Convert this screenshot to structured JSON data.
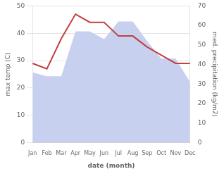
{
  "chart_data": {
    "type": "line",
    "xlabel": "date (month)",
    "ylabel": "max temp (C)",
    "y2label": "med. precipitation (kg/m2)",
    "categories": [
      "Jan",
      "Feb",
      "Mar",
      "Apr",
      "May",
      "Jun",
      "Jul",
      "Aug",
      "Sep",
      "Oct",
      "Nov",
      "Dec"
    ],
    "series": [
      {
        "type": "area",
        "axis": "y2",
        "color": "#c8d0f0",
        "values": [
          36,
          34,
          34,
          57,
          57,
          53,
          62,
          62,
          52,
          43,
          43,
          31
        ]
      },
      {
        "type": "line",
        "color": "#c0413e",
        "values": [
          29,
          27,
          38,
          47,
          44,
          44,
          39,
          39,
          35,
          32,
          29,
          29
        ]
      }
    ],
    "ylim": [
      0,
      50
    ],
    "yticks": [
      0,
      10,
      20,
      30,
      40,
      50
    ],
    "y2lim": [
      0,
      70
    ],
    "y2ticks": [
      0,
      10,
      20,
      30,
      40,
      50,
      60,
      70
    ],
    "grid": true
  }
}
